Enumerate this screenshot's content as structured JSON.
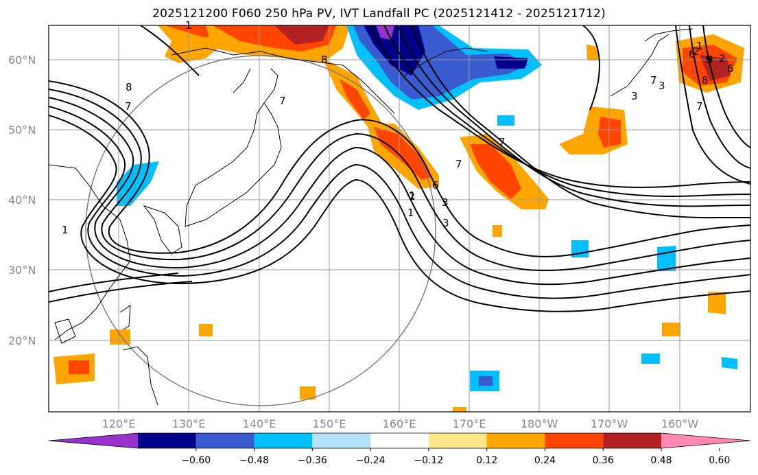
{
  "title": "2025121200 F060 250 hPa PV, IVT Landfall PC (2025121412 - 2025121712)",
  "lat_labels": [
    "60°N",
    "50°N",
    "40°N",
    "30°N",
    "20°N"
  ],
  "lon_labels": [
    "120°E",
    "130°E",
    "140°E",
    "150°E",
    "160°E",
    "170°E",
    "180°W",
    "170°W",
    "160°W"
  ],
  "colorbar": {
    "ticks": [
      "−0.60",
      "−0.48",
      "−0.36",
      "−0.24",
      "−0.12",
      "0.12",
      "0.24",
      "0.36",
      "0.48",
      "0.60"
    ],
    "colors": [
      "#9932cc",
      "#00008b",
      "#3a5bcf",
      "#00bfff",
      "#b0e0fa",
      "#ffffff",
      "#fde68a",
      "#ffa500",
      "#ff4500",
      "#b22222",
      "#ff89b4"
    ]
  },
  "contour_labels": [
    "8",
    "7",
    "1",
    "7",
    "1",
    "8",
    "7",
    "6",
    "2",
    "3",
    "1",
    "3",
    "2",
    "9",
    "7",
    "6",
    "9",
    "8",
    "7",
    "3",
    "2",
    "1",
    "1",
    "7",
    "6",
    "3"
  ]
}
